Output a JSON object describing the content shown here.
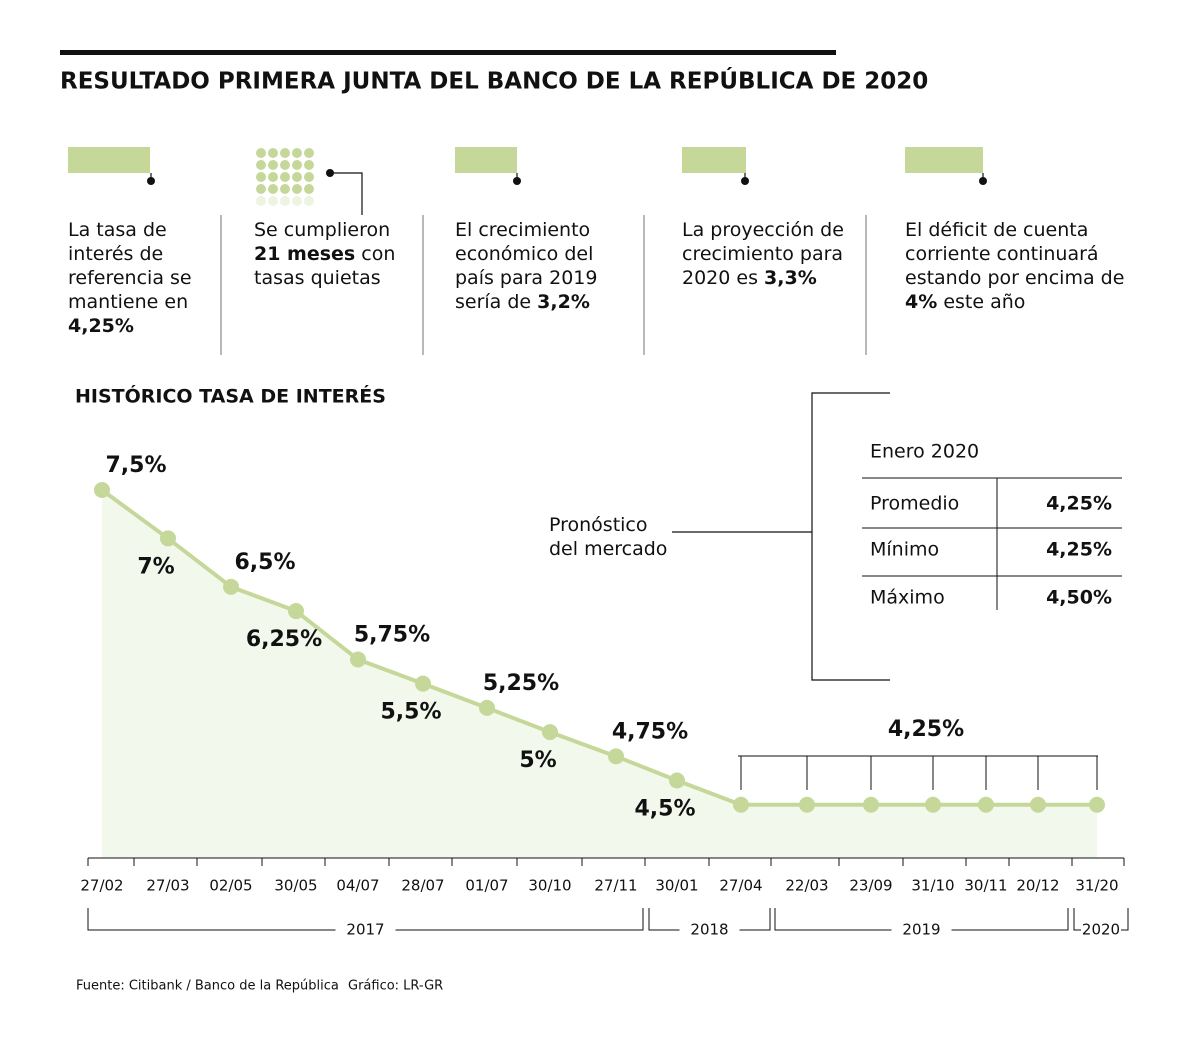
{
  "title": "RESULTADO PRIMERA JUNTA DEL BANCO DE LA REPÚBLICA DE 2020",
  "highlights": [
    {
      "parts": [
        {
          "text": "La tasa de interés de referencia se mantiene en",
          "bold": false
        },
        {
          "text": "4,25%",
          "bold": true
        }
      ]
    },
    {
      "parts": [
        {
          "text": "Se cumplieron",
          "bold": false
        },
        {
          "text": "21 meses",
          "bold": true
        },
        {
          "text": "con tasas quietas",
          "bold": false
        }
      ]
    },
    {
      "parts": [
        {
          "text": "El crecimiento económico del país para 2019 sería de",
          "bold": false
        },
        {
          "text": "3,2%",
          "bold": true
        }
      ]
    },
    {
      "parts": [
        {
          "text": "La proyección de crecimiento para 2020 es",
          "bold": false
        },
        {
          "text": "3,3%",
          "bold": true
        }
      ]
    },
    {
      "parts": [
        {
          "text": "El déficit de cuenta corriente continuará estando por encima de",
          "bold": false
        },
        {
          "text": "4%",
          "bold": true
        },
        {
          "text": "este año",
          "bold": false
        }
      ]
    }
  ],
  "chart_data": {
    "type": "line",
    "title": "HISTÓRICO TASA DE INTERÉS",
    "categories": [
      "27/02",
      "27/03",
      "02/05",
      "30/05",
      "04/07",
      "28/07",
      "01/07",
      "30/10",
      "27/11",
      "30/01",
      "27/04",
      "22/03",
      "23/09",
      "31/10",
      "30/11",
      "20/12",
      "31/20"
    ],
    "values": [
      7.5,
      7,
      6.5,
      6.25,
      5.75,
      5.5,
      5.25,
      5,
      4.75,
      4.5,
      4.25,
      4.25,
      4.25,
      4.25,
      4.25,
      4.25,
      4.25
    ],
    "value_labels": [
      "7,5%",
      "7%",
      "6,5%",
      "6,25%",
      "5,75%",
      "5,5%",
      "5,25%",
      "5%",
      "4,75%",
      "4,5%",
      null,
      null,
      null,
      null,
      null,
      null,
      null
    ],
    "plateau_label": "4,25%",
    "years": [
      "2017",
      "2018",
      "2019",
      "2020"
    ],
    "color": "#c5d89a",
    "area_color": "#f3f8ec",
    "ylim": [
      3.7,
      7.5
    ]
  },
  "forecast": {
    "label": "Pronóstico del mercado",
    "title": "Enero 2020",
    "rows": [
      [
        "Promedio",
        "4,25%"
      ],
      [
        "Mínimo",
        "4,25%"
      ],
      [
        "Máximo",
        "4,50%"
      ]
    ]
  },
  "footer": {
    "source": "Fuente: Citibank / Banco de la República",
    "credit": "Gráfico: LR-GR"
  }
}
